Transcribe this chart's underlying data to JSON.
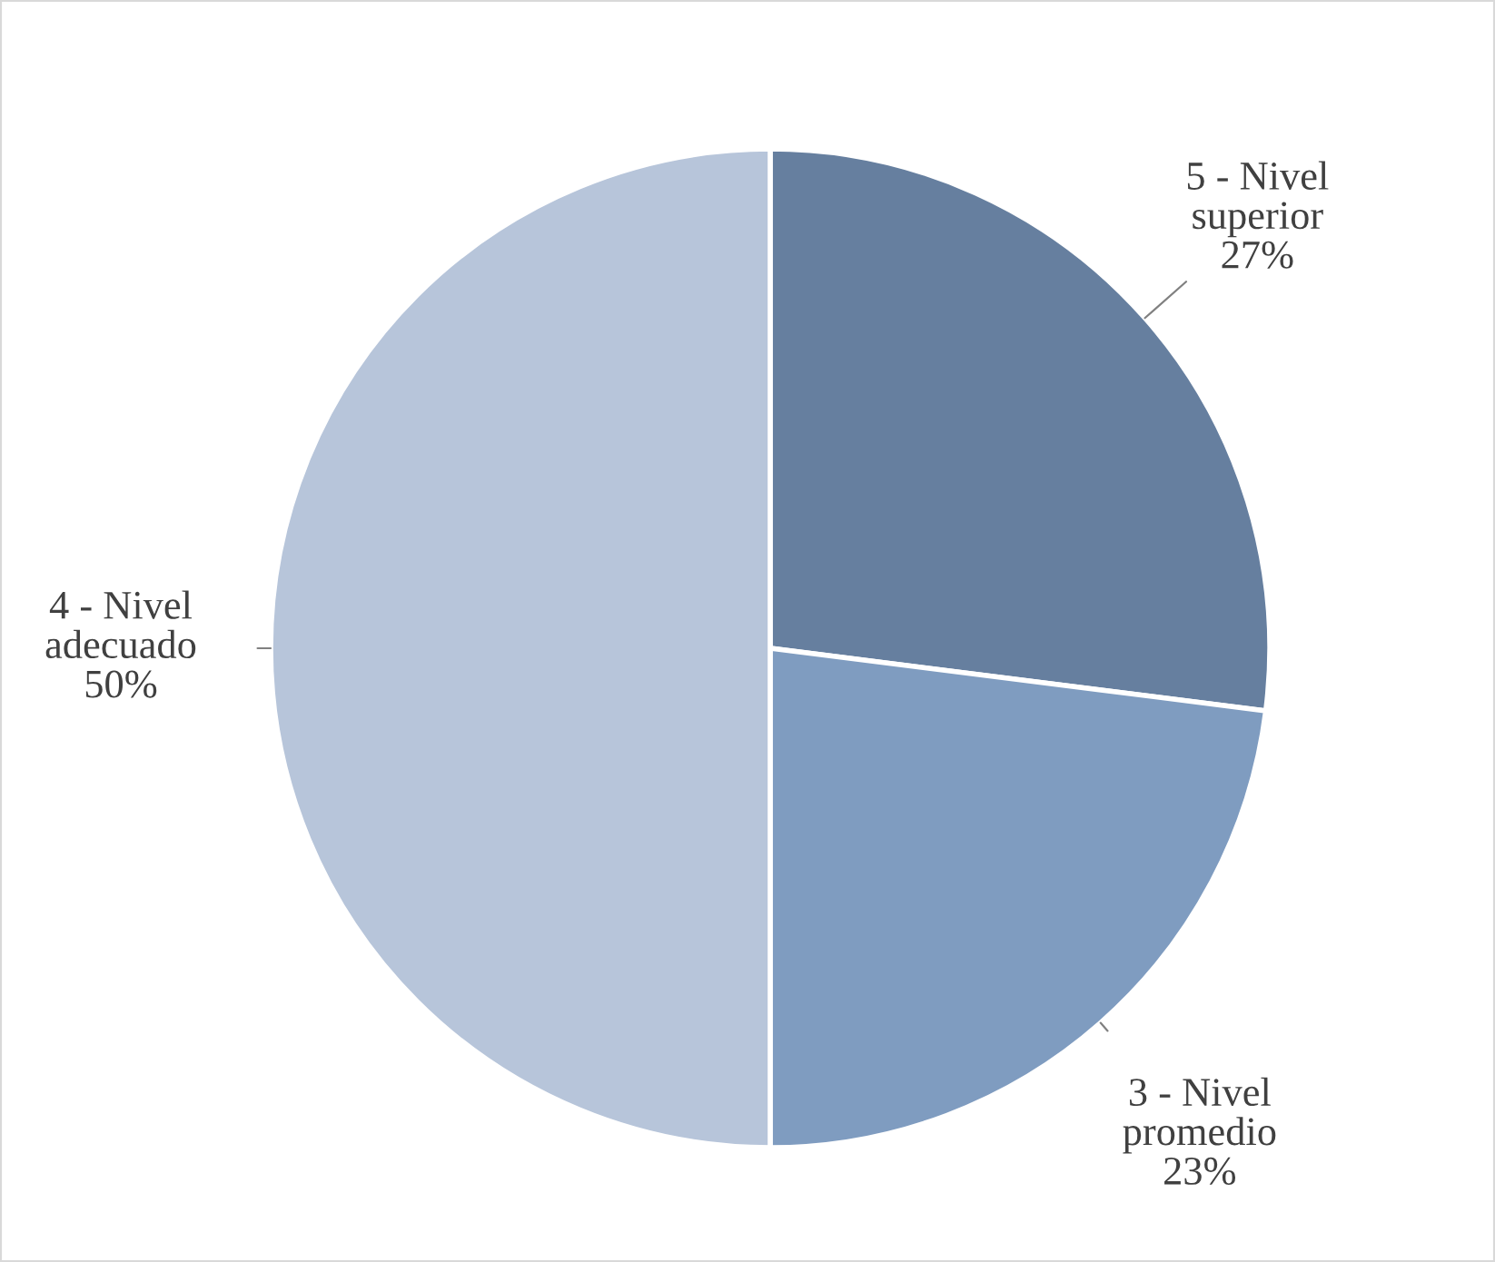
{
  "chart_data": {
    "type": "pie",
    "categories": [
      "5 - Nivel superior",
      "3 - Nivel promedio",
      "4 - Nivel adecuado"
    ],
    "values": [
      27,
      23,
      50
    ],
    "value_labels": [
      "27%",
      "23%",
      "50%"
    ],
    "colors": [
      "#667f9f",
      "#7f9cc0",
      "#b7c5da"
    ],
    "legend": false
  }
}
